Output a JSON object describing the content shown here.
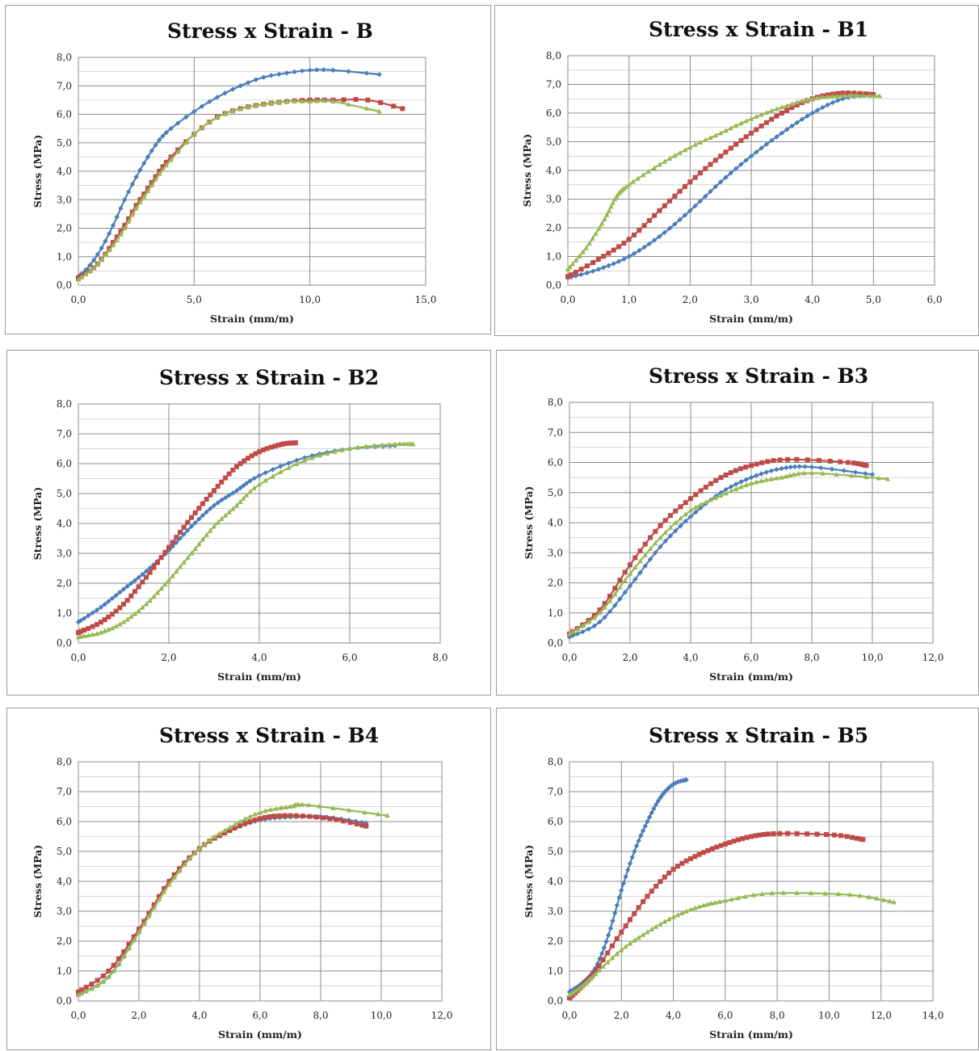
{
  "colors": {
    "blue": "#4a7ebb",
    "red": "#be4b48",
    "green": "#98b954",
    "grid": "#8c8c8c"
  },
  "chart_data": [
    {
      "type": "line",
      "title": "Stress x Strain - B",
      "xlabel": "Strain (mm/m)",
      "ylabel": "Stress (MPa)",
      "xlim": [
        0,
        15
      ],
      "ylim": [
        0,
        8
      ],
      "xticks": [
        "0,0",
        "5,0",
        "10,0",
        "15,0"
      ],
      "yticks": [
        "0,0",
        "1,0",
        "2,0",
        "3,0",
        "4,0",
        "5,0",
        "6,0",
        "7,0",
        "8,0"
      ],
      "grid": true,
      "legend": "none",
      "series": [
        {
          "color": "blue",
          "values": [
            [
              0,
              0.3
            ],
            [
              0.5,
              0.7
            ],
            [
              1,
              1.3
            ],
            [
              1.5,
              2.1
            ],
            [
              2,
              3
            ],
            [
              2.5,
              3.8
            ],
            [
              3,
              4.5
            ],
            [
              3.5,
              5.1
            ],
            [
              4,
              5.5
            ],
            [
              5,
              6.1
            ],
            [
              6,
              6.6
            ],
            [
              7,
              7
            ],
            [
              8,
              7.3
            ],
            [
              9,
              7.45
            ],
            [
              10,
              7.55
            ],
            [
              11,
              7.55
            ],
            [
              13,
              7.4
            ]
          ]
        },
        {
          "color": "red",
          "values": [
            [
              0,
              0.25
            ],
            [
              0.5,
              0.5
            ],
            [
              1,
              0.9
            ],
            [
              1.5,
              1.5
            ],
            [
              2,
              2.1
            ],
            [
              2.5,
              2.8
            ],
            [
              3,
              3.4
            ],
            [
              3.5,
              4
            ],
            [
              4,
              4.5
            ],
            [
              5,
              5.3
            ],
            [
              6,
              5.9
            ],
            [
              7,
              6.2
            ],
            [
              8,
              6.35
            ],
            [
              9,
              6.45
            ],
            [
              10,
              6.5
            ],
            [
              11,
              6.5
            ],
            [
              12.5,
              6.5
            ],
            [
              14,
              6.2
            ]
          ]
        },
        {
          "color": "green",
          "values": [
            [
              0,
              0.2
            ],
            [
              0.5,
              0.5
            ],
            [
              1,
              0.9
            ],
            [
              1.5,
              1.4
            ],
            [
              2,
              2
            ],
            [
              2.5,
              2.7
            ],
            [
              3,
              3.3
            ],
            [
              3.5,
              3.9
            ],
            [
              4,
              4.4
            ],
            [
              5,
              5.3
            ],
            [
              6,
              5.9
            ],
            [
              7,
              6.2
            ],
            [
              8,
              6.35
            ],
            [
              9,
              6.45
            ],
            [
              10,
              6.45
            ],
            [
              11,
              6.45
            ],
            [
              13,
              6.1
            ]
          ]
        }
      ]
    },
    {
      "type": "line",
      "title": "Stress x Strain - B1",
      "xlabel": "Strain (mm/m)",
      "ylabel": "Stress (MPa)",
      "xlim": [
        0,
        6
      ],
      "ylim": [
        0,
        8
      ],
      "xticks": [
        "0,0",
        "1,0",
        "2,0",
        "3,0",
        "4,0",
        "5,0",
        "6,0"
      ],
      "yticks": [
        "0,0",
        "1,0",
        "2,0",
        "3,0",
        "4,0",
        "5,0",
        "6,0",
        "7,0",
        "8,0"
      ],
      "grid": true,
      "legend": "none",
      "series": [
        {
          "color": "blue",
          "values": [
            [
              0,
              0.25
            ],
            [
              0.5,
              0.55
            ],
            [
              1,
              1
            ],
            [
              1.5,
              1.7
            ],
            [
              2,
              2.6
            ],
            [
              2.5,
              3.6
            ],
            [
              3,
              4.5
            ],
            [
              3.5,
              5.3
            ],
            [
              4,
              6
            ],
            [
              4.5,
              6.5
            ],
            [
              5,
              6.65
            ]
          ]
        },
        {
          "color": "red",
          "values": [
            [
              0,
              0.3
            ],
            [
              0.5,
              0.9
            ],
            [
              1,
              1.6
            ],
            [
              1.5,
              2.6
            ],
            [
              2,
              3.6
            ],
            [
              2.5,
              4.5
            ],
            [
              3,
              5.3
            ],
            [
              3.5,
              6
            ],
            [
              4,
              6.5
            ],
            [
              4.5,
              6.7
            ],
            [
              5,
              6.65
            ]
          ]
        },
        {
          "color": "green",
          "values": [
            [
              0,
              0.55
            ],
            [
              0.3,
              1.3
            ],
            [
              0.6,
              2.3
            ],
            [
              0.8,
              3.1
            ],
            [
              1,
              3.5
            ],
            [
              1.5,
              4.2
            ],
            [
              2,
              4.8
            ],
            [
              2.5,
              5.3
            ],
            [
              3,
              5.8
            ],
            [
              3.5,
              6.2
            ],
            [
              4,
              6.5
            ],
            [
              4.5,
              6.6
            ],
            [
              5.1,
              6.6
            ]
          ]
        }
      ]
    },
    {
      "type": "line",
      "title": "Stress x Strain - B2",
      "xlabel": "Strain (mm/m)",
      "ylabel": "Stress (MPa)",
      "xlim": [
        0,
        8
      ],
      "ylim": [
        0,
        8
      ],
      "xticks": [
        "0,0",
        "2,0",
        "4,0",
        "6,0",
        "8,0"
      ],
      "yticks": [
        "0,0",
        "1,0",
        "2,0",
        "3,0",
        "4,0",
        "5,0",
        "6,0",
        "7,0",
        "8,0"
      ],
      "grid": true,
      "legend": "none",
      "series": [
        {
          "color": "blue",
          "values": [
            [
              0,
              0.7
            ],
            [
              0.5,
              1.2
            ],
            [
              1,
              1.8
            ],
            [
              1.5,
              2.4
            ],
            [
              2,
              3.1
            ],
            [
              2.5,
              3.9
            ],
            [
              3,
              4.6
            ],
            [
              3.5,
              5.1
            ],
            [
              4,
              5.6
            ],
            [
              5,
              6.2
            ],
            [
              6,
              6.5
            ],
            [
              7,
              6.6
            ]
          ]
        },
        {
          "color": "red",
          "values": [
            [
              0,
              0.35
            ],
            [
              0.5,
              0.7
            ],
            [
              1,
              1.3
            ],
            [
              1.5,
              2.2
            ],
            [
              2,
              3.2
            ],
            [
              2.5,
              4.2
            ],
            [
              3,
              5.1
            ],
            [
              3.5,
              5.9
            ],
            [
              4,
              6.4
            ],
            [
              4.5,
              6.65
            ],
            [
              4.8,
              6.7
            ]
          ]
        },
        {
          "color": "green",
          "values": [
            [
              0,
              0.2
            ],
            [
              0.5,
              0.35
            ],
            [
              1,
              0.7
            ],
            [
              1.5,
              1.3
            ],
            [
              2,
              2.1
            ],
            [
              2.5,
              3
            ],
            [
              3,
              3.9
            ],
            [
              3.5,
              4.6
            ],
            [
              4,
              5.3
            ],
            [
              5,
              6.1
            ],
            [
              6,
              6.5
            ],
            [
              7,
              6.65
            ],
            [
              7.4,
              6.65
            ]
          ]
        }
      ]
    },
    {
      "type": "line",
      "title": "Stress x Strain - B3",
      "xlabel": "Strain (mm/m)",
      "ylabel": "Stress (MPa)",
      "xlim": [
        0,
        12
      ],
      "ylim": [
        0,
        8
      ],
      "xticks": [
        "0,0",
        "2,0",
        "4,0",
        "6,0",
        "8,0",
        "10,0",
        "12,0"
      ],
      "yticks": [
        "0,0",
        "1,0",
        "2,0",
        "3,0",
        "4,0",
        "5,0",
        "6,0",
        "7,0",
        "8,0"
      ],
      "grid": true,
      "legend": "none",
      "series": [
        {
          "color": "blue",
          "values": [
            [
              0,
              0.2
            ],
            [
              1,
              0.7
            ],
            [
              2,
              1.9
            ],
            [
              3,
              3.2
            ],
            [
              4,
              4.2
            ],
            [
              5,
              5
            ],
            [
              6,
              5.5
            ],
            [
              7,
              5.8
            ],
            [
              8,
              5.85
            ],
            [
              10,
              5.6
            ]
          ]
        },
        {
          "color": "red",
          "values": [
            [
              0,
              0.3
            ],
            [
              1,
              1.1
            ],
            [
              2,
              2.6
            ],
            [
              3,
              3.9
            ],
            [
              4,
              4.8
            ],
            [
              5,
              5.5
            ],
            [
              6,
              5.9
            ],
            [
              7.2,
              6.1
            ],
            [
              9.2,
              6
            ],
            [
              9.8,
              5.9
            ]
          ]
        },
        {
          "color": "green",
          "values": [
            [
              0,
              0.3
            ],
            [
              1,
              1
            ],
            [
              2,
              2.3
            ],
            [
              3,
              3.5
            ],
            [
              4,
              4.4
            ],
            [
              5,
              4.9
            ],
            [
              6,
              5.3
            ],
            [
              7,
              5.5
            ],
            [
              8,
              5.65
            ],
            [
              10.5,
              5.45
            ]
          ]
        }
      ]
    },
    {
      "type": "line",
      "title": "Stress x Strain - B4",
      "xlabel": "Strain (mm/m)",
      "ylabel": "Stress (MPa)",
      "xlim": [
        0,
        12
      ],
      "ylim": [
        0,
        8
      ],
      "xticks": [
        "0,0",
        "2,0",
        "4,0",
        "6,0",
        "8,0",
        "10,0",
        "12,0"
      ],
      "yticks": [
        "0,0",
        "1,0",
        "2,0",
        "3,0",
        "4,0",
        "5,0",
        "6,0",
        "7,0",
        "8,0"
      ],
      "grid": true,
      "legend": "none",
      "series": [
        {
          "color": "blue",
          "values": [
            [
              0,
              0.2
            ],
            [
              1,
              0.8
            ],
            [
              2,
              2.3
            ],
            [
              3,
              4
            ],
            [
              4,
              5.1
            ],
            [
              5,
              5.7
            ],
            [
              6,
              6.05
            ],
            [
              7,
              6.15
            ],
            [
              8.2,
              6.15
            ],
            [
              9.5,
              5.95
            ]
          ]
        },
        {
          "color": "red",
          "values": [
            [
              0,
              0.3
            ],
            [
              1,
              1
            ],
            [
              2,
              2.4
            ],
            [
              3,
              4
            ],
            [
              4,
              5.1
            ],
            [
              5,
              5.7
            ],
            [
              6,
              6.1
            ],
            [
              7,
              6.2
            ],
            [
              8.3,
              6.1
            ],
            [
              9.5,
              5.85
            ]
          ]
        },
        {
          "color": "green",
          "values": [
            [
              0,
              0.2
            ],
            [
              1,
              0.8
            ],
            [
              2,
              2.3
            ],
            [
              3,
              3.9
            ],
            [
              4,
              5.1
            ],
            [
              5,
              5.8
            ],
            [
              6,
              6.3
            ],
            [
              7,
              6.5
            ],
            [
              7.6,
              6.55
            ],
            [
              10.2,
              6.2
            ]
          ]
        }
      ]
    },
    {
      "type": "line",
      "title": "Stress x Strain - B5",
      "xlabel": "Strain (mm/m)",
      "ylabel": "Stress (MPa)",
      "xlim": [
        0,
        14
      ],
      "ylim": [
        0,
        8
      ],
      "xticks": [
        "0,0",
        "2,0",
        "4,0",
        "6,0",
        "8,0",
        "10,0",
        "12,0",
        "14,0"
      ],
      "yticks": [
        "0,0",
        "1,0",
        "2,0",
        "3,0",
        "4,0",
        "5,0",
        "6,0",
        "7,0",
        "8,0"
      ],
      "grid": true,
      "legend": "none",
      "series": [
        {
          "color": "blue",
          "values": [
            [
              0,
              0.3
            ],
            [
              0.5,
              0.6
            ],
            [
              1,
              1.1
            ],
            [
              1.5,
              2.2
            ],
            [
              2,
              3.7
            ],
            [
              2.5,
              5
            ],
            [
              3,
              6
            ],
            [
              3.5,
              6.8
            ],
            [
              4,
              7.25
            ],
            [
              4.5,
              7.4
            ]
          ]
        },
        {
          "color": "red",
          "values": [
            [
              0,
              0.1
            ],
            [
              0.5,
              0.5
            ],
            [
              1,
              1
            ],
            [
              2,
              2.3
            ],
            [
              3,
              3.5
            ],
            [
              4,
              4.4
            ],
            [
              5,
              4.9
            ],
            [
              6,
              5.25
            ],
            [
              7,
              5.5
            ],
            [
              8.1,
              5.6
            ],
            [
              10.2,
              5.55
            ],
            [
              11.3,
              5.4
            ]
          ]
        },
        {
          "color": "green",
          "values": [
            [
              0,
              0.2
            ],
            [
              0.5,
              0.5
            ],
            [
              1,
              0.9
            ],
            [
              2,
              1.7
            ],
            [
              3,
              2.3
            ],
            [
              4,
              2.8
            ],
            [
              5,
              3.15
            ],
            [
              6,
              3.35
            ],
            [
              7.8,
              3.6
            ],
            [
              10.8,
              3.55
            ],
            [
              12.5,
              3.3
            ]
          ]
        }
      ]
    }
  ]
}
